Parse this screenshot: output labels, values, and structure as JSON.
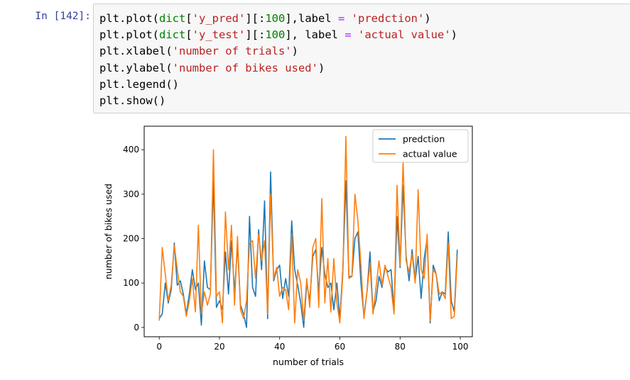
{
  "cell": {
    "prompt": "In [142]:",
    "code_lines": [
      [
        [
          "plt.plot(",
          "t"
        ],
        [
          "dict",
          "fn"
        ],
        [
          "[",
          "t"
        ],
        [
          "'y_pred'",
          "str"
        ],
        [
          "][:",
          "t"
        ],
        [
          "100",
          "num"
        ],
        [
          "],label ",
          "t"
        ],
        [
          "=",
          "op"
        ],
        [
          " ",
          "t"
        ],
        [
          "'predction'",
          "str"
        ],
        [
          ")",
          "t"
        ]
      ],
      [
        [
          "plt.plot(",
          "t"
        ],
        [
          "dict",
          "fn"
        ],
        [
          "[",
          "t"
        ],
        [
          "'y_test'",
          "str"
        ],
        [
          "][:",
          "t"
        ],
        [
          "100",
          "num"
        ],
        [
          "], label ",
          "t"
        ],
        [
          "=",
          "op"
        ],
        [
          " ",
          "t"
        ],
        [
          "'actual value'",
          "str"
        ],
        [
          ")",
          "t"
        ]
      ],
      [
        [
          "plt.xlabel(",
          "t"
        ],
        [
          "'number of trials'",
          "str"
        ],
        [
          ")",
          "t"
        ]
      ],
      [
        [
          "plt.ylabel(",
          "t"
        ],
        [
          "'number of bikes used'",
          "str"
        ],
        [
          ")",
          "t"
        ]
      ],
      [
        [
          "plt.legend()",
          "t"
        ]
      ],
      [
        [
          "plt.show()",
          "t"
        ]
      ]
    ]
  },
  "chart_data": {
    "type": "line",
    "xlabel": "number of trials",
    "ylabel": "number of bikes used",
    "xlim": [
      -5,
      104
    ],
    "ylim": [
      -21,
      453
    ],
    "xticks": [
      0,
      20,
      40,
      60,
      80,
      100
    ],
    "yticks": [
      0,
      100,
      200,
      300,
      400
    ],
    "grid": false,
    "legend_position": "top-right",
    "x": [
      0,
      1,
      2,
      3,
      4,
      5,
      6,
      7,
      8,
      9,
      10,
      11,
      12,
      13,
      14,
      15,
      16,
      17,
      18,
      19,
      20,
      21,
      22,
      23,
      24,
      25,
      26,
      27,
      28,
      29,
      30,
      31,
      32,
      33,
      34,
      35,
      36,
      37,
      38,
      39,
      40,
      41,
      42,
      43,
      44,
      45,
      46,
      47,
      48,
      49,
      50,
      51,
      52,
      53,
      54,
      55,
      56,
      57,
      58,
      59,
      60,
      61,
      62,
      63,
      64,
      65,
      66,
      67,
      68,
      69,
      70,
      71,
      72,
      73,
      74,
      75,
      76,
      77,
      78,
      79,
      80,
      81,
      82,
      83,
      84,
      85,
      86,
      87,
      88,
      89,
      90,
      91,
      92,
      93,
      94,
      95,
      96,
      97,
      98,
      99
    ],
    "series": [
      {
        "name": "predction",
        "color": "#1f77b4",
        "values": [
          20,
          30,
          100,
          55,
          85,
          190,
          95,
          105,
          75,
          30,
          75,
          130,
          85,
          100,
          5,
          150,
          90,
          85,
          330,
          45,
          60,
          40,
          170,
          75,
          195,
          80,
          185,
          50,
          30,
          0,
          250,
          90,
          70,
          220,
          130,
          285,
          20,
          350,
          105,
          130,
          140,
          65,
          110,
          70,
          240,
          130,
          95,
          55,
          0,
          100,
          60,
          160,
          175,
          80,
          180,
          120,
          90,
          100,
          40,
          100,
          20,
          130,
          330,
          115,
          115,
          200,
          215,
          100,
          25,
          80,
          170,
          35,
          60,
          115,
          90,
          135,
          125,
          130,
          35,
          250,
          135,
          320,
          160,
          105,
          175,
          105,
          160,
          65,
          155,
          200,
          10,
          140,
          120,
          60,
          80,
          75,
          215,
          60,
          35,
          175
        ]
      },
      {
        "name": "actual value",
        "color": "#ff7f0e",
        "values": [
          15,
          180,
          120,
          60,
          95,
          185,
          130,
          80,
          70,
          25,
          60,
          110,
          35,
          230,
          30,
          80,
          50,
          75,
          400,
          70,
          80,
          10,
          260,
          130,
          230,
          50,
          205,
          40,
          20,
          60,
          190,
          195,
          110,
          210,
          150,
          195,
          30,
          300,
          110,
          135,
          70,
          90,
          85,
          40,
          210,
          10,
          130,
          100,
          15,
          110,
          45,
          180,
          200,
          45,
          290,
          55,
          155,
          35,
          155,
          55,
          10,
          120,
          430,
          110,
          115,
          300,
          240,
          140,
          20,
          80,
          145,
          30,
          90,
          150,
          95,
          140,
          115,
          90,
          30,
          320,
          140,
          375,
          150,
          125,
          165,
          100,
          310,
          130,
          110,
          210,
          15,
          130,
          120,
          75,
          80,
          65,
          190,
          20,
          25,
          160
        ]
      }
    ]
  }
}
